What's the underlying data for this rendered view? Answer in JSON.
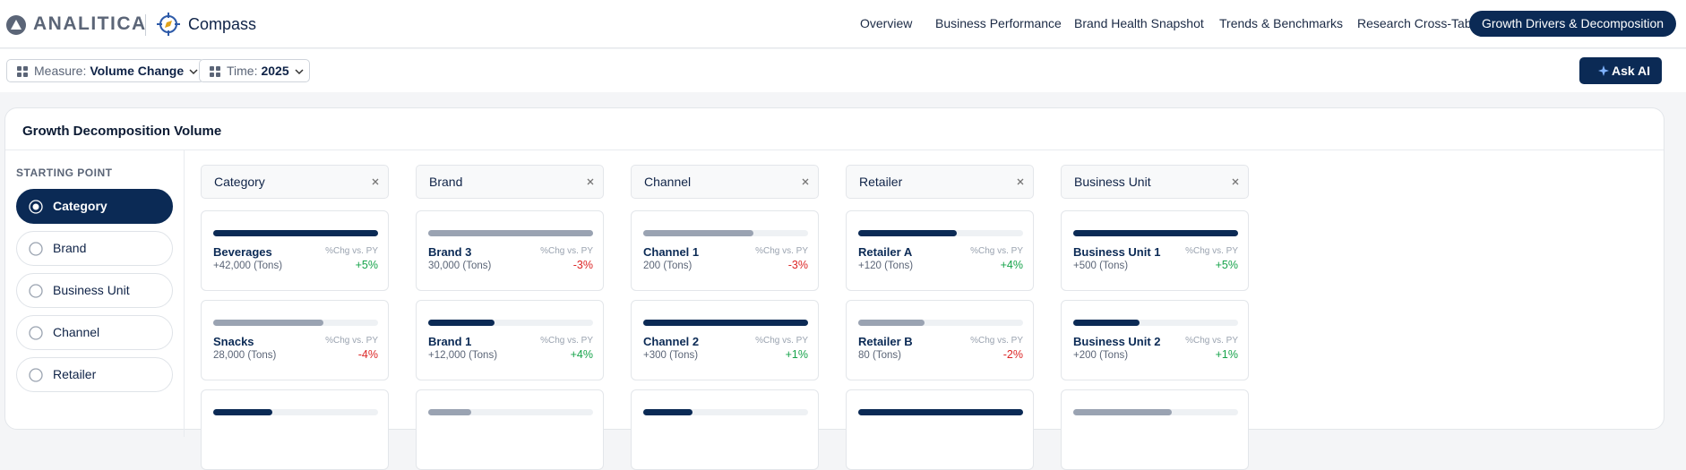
{
  "header": {
    "brand": "ANALITICA",
    "product": "Compass",
    "nav": [
      {
        "label": "Overview"
      },
      {
        "label": "Business Performance"
      },
      {
        "label": "Brand Health Snapshot"
      },
      {
        "label": "Trends & Benchmarks"
      },
      {
        "label": "Research Cross-Tab"
      },
      {
        "label": "Growth Drivers & Decomposition",
        "active": true
      }
    ]
  },
  "filters": [
    {
      "label": "Measure:",
      "value": "Volume Change"
    },
    {
      "label": "Time:",
      "value": "2025"
    }
  ],
  "ask_ai": "Ask AI",
  "panel": {
    "title": "Growth Decomposition Volume",
    "starting_point": {
      "title": "STARTING POINT",
      "options": [
        {
          "label": "Category",
          "selected": true
        },
        {
          "label": "Brand"
        },
        {
          "label": "Business Unit"
        },
        {
          "label": "Channel"
        },
        {
          "label": "Retailer"
        }
      ]
    },
    "columns": [
      {
        "title": "Category",
        "cards": [
          {
            "bar": 100,
            "highlight": true,
            "name": "Beverages",
            "sub": "+42,000 (Tons)",
            "change_label": "%Chg vs. PY",
            "change": "+5%"
          },
          {
            "bar": 67,
            "name": "Snacks",
            "sub": "28,000 (Tons)",
            "change_label": "%Chg vs. PY",
            "change": "-4%"
          },
          {
            "bar": 36,
            "highlight": true
          }
        ]
      },
      {
        "title": "Brand",
        "cards": [
          {
            "bar": 100,
            "name": "Brand 3",
            "sub": "30,000 (Tons)",
            "change_label": "%Chg vs. PY",
            "change": "-3%"
          },
          {
            "bar": 40,
            "highlight": true,
            "name": "Brand 1",
            "sub": "+12,000 (Tons)",
            "change_label": "%Chg vs. PY",
            "change": "+4%"
          },
          {
            "bar": 26
          }
        ]
      },
      {
        "title": "Channel",
        "cards": [
          {
            "bar": 67,
            "name": "Channel 1",
            "sub": "200 (Tons)",
            "change_label": "%Chg vs. PY",
            "change": "-3%"
          },
          {
            "bar": 100,
            "highlight": true,
            "name": "Channel 2",
            "sub": "+300 (Tons)",
            "change_label": "%Chg vs. PY",
            "change": "+1%"
          },
          {
            "bar": 30,
            "highlight": true
          }
        ]
      },
      {
        "title": "Retailer",
        "cards": [
          {
            "bar": 60,
            "highlight": true,
            "name": "Retailer A",
            "sub": "+120 (Tons)",
            "change_label": "%Chg vs. PY",
            "change": "+4%"
          },
          {
            "bar": 40,
            "name": "Retailer B",
            "sub": "80 (Tons)",
            "change_label": "%Chg vs. PY",
            "change": "-2%"
          },
          {
            "bar": 100,
            "highlight": true
          }
        ]
      },
      {
        "title": "Business Unit",
        "cards": [
          {
            "bar": 100,
            "highlight": true,
            "name": "Business Unit 1",
            "sub": "+500 (Tons)",
            "change_label": "%Chg vs. PY",
            "change": "+5%"
          },
          {
            "bar": 40,
            "highlight": true,
            "name": "Business Unit 2",
            "sub": "+200 (Tons)",
            "change_label": "%Chg vs. PY",
            "change": "+1%"
          },
          {
            "bar": 60
          }
        ]
      }
    ]
  }
}
